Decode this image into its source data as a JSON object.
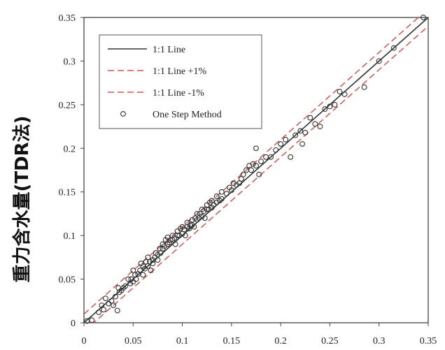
{
  "chart_data": {
    "type": "scatter",
    "title": "",
    "xlabel": "",
    "ylabel": "重力含水量(TDR法)",
    "xlim": [
      0,
      0.35
    ],
    "ylim": [
      0,
      0.35
    ],
    "xticks": [
      "0",
      "0.05",
      "0.1",
      "0.15",
      "0.2",
      "0.25",
      "0.3",
      "0.35"
    ],
    "yticks": [
      "0",
      "0.05",
      "0.1",
      "0.15",
      "0.2",
      "0.25",
      "0.3",
      "0.35"
    ],
    "grid": false,
    "legend_position": "top-left",
    "legend": [
      {
        "label": "1:1 Line",
        "style": "solid",
        "color": "#333333"
      },
      {
        "label": "1:1 Line +1%",
        "style": "dashed",
        "color": "#d9534f"
      },
      {
        "label": "1:1 Line -1%",
        "style": "dashed",
        "color": "#d9534f"
      },
      {
        "label": "One Step Method",
        "style": "marker-circle",
        "color": "#333333"
      }
    ],
    "lines": [
      {
        "name": "1:1 Line",
        "x": [
          0,
          0.35
        ],
        "y": [
          0,
          0.35
        ]
      },
      {
        "name": "1:1 Line +1%",
        "x": [
          0,
          0.35
        ],
        "y": [
          0.01,
          0.36
        ]
      },
      {
        "name": "1:1 Line -1%",
        "x": [
          0,
          0.35
        ],
        "y": [
          -0.01,
          0.34
        ]
      }
    ],
    "series": [
      {
        "name": "One Step Method",
        "points": [
          [
            0.003,
            0.002
          ],
          [
            0.008,
            0.003
          ],
          [
            0.015,
            0.012
          ],
          [
            0.018,
            0.02
          ],
          [
            0.02,
            0.015
          ],
          [
            0.022,
            0.028
          ],
          [
            0.025,
            0.022
          ],
          [
            0.028,
            0.025
          ],
          [
            0.03,
            0.02
          ],
          [
            0.032,
            0.03
          ],
          [
            0.034,
            0.014
          ],
          [
            0.035,
            0.04
          ],
          [
            0.036,
            0.035
          ],
          [
            0.038,
            0.037
          ],
          [
            0.04,
            0.04
          ],
          [
            0.042,
            0.042
          ],
          [
            0.045,
            0.05
          ],
          [
            0.047,
            0.045
          ],
          [
            0.048,
            0.05
          ],
          [
            0.05,
            0.047
          ],
          [
            0.05,
            0.06
          ],
          [
            0.052,
            0.055
          ],
          [
            0.053,
            0.05
          ],
          [
            0.055,
            0.056
          ],
          [
            0.057,
            0.06
          ],
          [
            0.058,
            0.068
          ],
          [
            0.06,
            0.055
          ],
          [
            0.06,
            0.065
          ],
          [
            0.062,
            0.062
          ],
          [
            0.063,
            0.07
          ],
          [
            0.065,
            0.065
          ],
          [
            0.065,
            0.075
          ],
          [
            0.067,
            0.07
          ],
          [
            0.068,
            0.06
          ],
          [
            0.07,
            0.072
          ],
          [
            0.07,
            0.068
          ],
          [
            0.072,
            0.075
          ],
          [
            0.073,
            0.08
          ],
          [
            0.075,
            0.078
          ],
          [
            0.075,
            0.072
          ],
          [
            0.077,
            0.085
          ],
          [
            0.078,
            0.08
          ],
          [
            0.08,
            0.085
          ],
          [
            0.08,
            0.09
          ],
          [
            0.082,
            0.088
          ],
          [
            0.083,
            0.095
          ],
          [
            0.085,
            0.09
          ],
          [
            0.085,
            0.098
          ],
          [
            0.087,
            0.092
          ],
          [
            0.088,
            0.095
          ],
          [
            0.09,
            0.095
          ],
          [
            0.09,
            0.1
          ],
          [
            0.092,
            0.097
          ],
          [
            0.093,
            0.09
          ],
          [
            0.095,
            0.1
          ],
          [
            0.095,
            0.105
          ],
          [
            0.097,
            0.1
          ],
          [
            0.098,
            0.108
          ],
          [
            0.1,
            0.102
          ],
          [
            0.1,
            0.11
          ],
          [
            0.102,
            0.107
          ],
          [
            0.103,
            0.1
          ],
          [
            0.105,
            0.11
          ],
          [
            0.105,
            0.115
          ],
          [
            0.107,
            0.108
          ],
          [
            0.108,
            0.112
          ],
          [
            0.11,
            0.112
          ],
          [
            0.11,
            0.118
          ],
          [
            0.112,
            0.11
          ],
          [
            0.113,
            0.12
          ],
          [
            0.115,
            0.118
          ],
          [
            0.115,
            0.125
          ],
          [
            0.117,
            0.12
          ],
          [
            0.118,
            0.125
          ],
          [
            0.12,
            0.122
          ],
          [
            0.12,
            0.13
          ],
          [
            0.122,
            0.128
          ],
          [
            0.123,
            0.12
          ],
          [
            0.125,
            0.13
          ],
          [
            0.125,
            0.135
          ],
          [
            0.127,
            0.13
          ],
          [
            0.128,
            0.138
          ],
          [
            0.13,
            0.132
          ],
          [
            0.13,
            0.14
          ],
          [
            0.132,
            0.135
          ],
          [
            0.135,
            0.138
          ],
          [
            0.135,
            0.145
          ],
          [
            0.138,
            0.14
          ],
          [
            0.14,
            0.142
          ],
          [
            0.14,
            0.15
          ],
          [
            0.145,
            0.148
          ],
          [
            0.148,
            0.155
          ],
          [
            0.15,
            0.152
          ],
          [
            0.152,
            0.16
          ],
          [
            0.155,
            0.158
          ],
          [
            0.158,
            0.16
          ],
          [
            0.16,
            0.165
          ],
          [
            0.162,
            0.17
          ],
          [
            0.165,
            0.175
          ],
          [
            0.168,
            0.18
          ],
          [
            0.17,
            0.175
          ],
          [
            0.172,
            0.182
          ],
          [
            0.175,
            0.18
          ],
          [
            0.175,
            0.2
          ],
          [
            0.178,
            0.17
          ],
          [
            0.18,
            0.185
          ],
          [
            0.185,
            0.19
          ],
          [
            0.19,
            0.19
          ],
          [
            0.195,
            0.198
          ],
          [
            0.2,
            0.205
          ],
          [
            0.205,
            0.21
          ],
          [
            0.21,
            0.19
          ],
          [
            0.215,
            0.215
          ],
          [
            0.22,
            0.22
          ],
          [
            0.222,
            0.205
          ],
          [
            0.225,
            0.218
          ],
          [
            0.23,
            0.235
          ],
          [
            0.235,
            0.228
          ],
          [
            0.24,
            0.225
          ],
          [
            0.245,
            0.245
          ],
          [
            0.25,
            0.248
          ],
          [
            0.255,
            0.25
          ],
          [
            0.26,
            0.265
          ],
          [
            0.265,
            0.262
          ],
          [
            0.285,
            0.27
          ],
          [
            0.3,
            0.3
          ],
          [
            0.315,
            0.315
          ],
          [
            0.345,
            0.35
          ]
        ]
      }
    ]
  }
}
